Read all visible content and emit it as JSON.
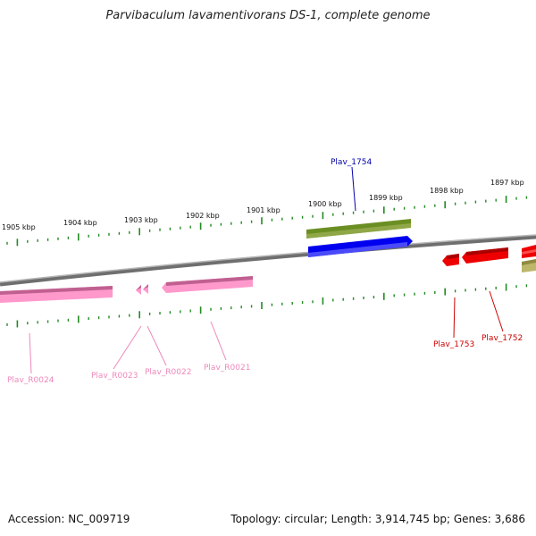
{
  "title": "Parvibaculum lavamentivorans DS-1, complete genome",
  "footer": {
    "accession": "Accession: NC_009719",
    "summary": "Topology: circular; Length: 3,914,745 bp; Genes: 3,686"
  },
  "ticks": [
    "1905 kbp",
    "1904 kbp",
    "1903 kbp",
    "1902 kbp",
    "1901 kbp",
    "1900 kbp",
    "1899 kbp",
    "1898 kbp",
    "1897 kbp"
  ],
  "genes": {
    "Plav_1754": "Plav_1754",
    "Plav_1753": "Plav_1753",
    "Plav_1752": "Plav_1752",
    "Plav_R0024": "Plav_R0024",
    "Plav_R0023": "Plav_R0023",
    "Plav_R0022": "Plav_R0022",
    "Plav_R0021": "Plav_R0021"
  },
  "colors": {
    "forward_cds": "#0000ee",
    "reverse_cds": "#ee0000",
    "rna": "#ff99cc",
    "ruler": "#228b22",
    "backbone": "#808080",
    "olive": "#6b8e23",
    "khaki": "#bdb76b",
    "label_blue": "#0000aa",
    "label_red": "#cc0000",
    "label_pink": "#ee88bb"
  }
}
